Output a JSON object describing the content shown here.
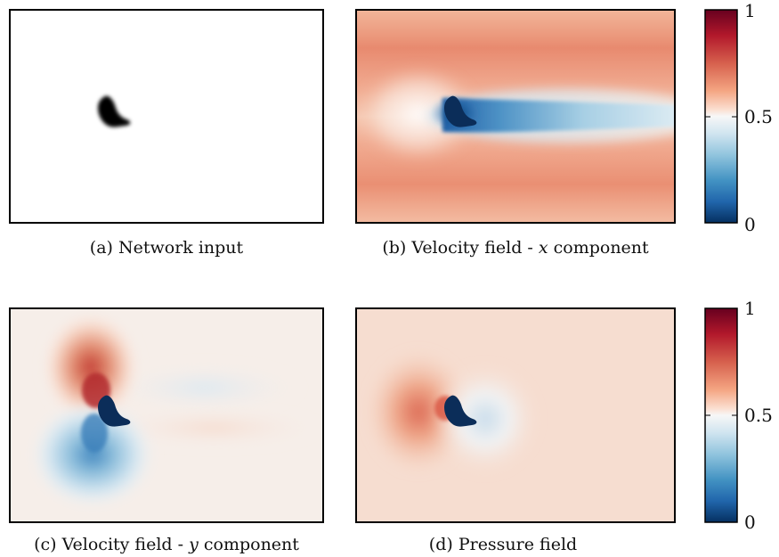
{
  "panels": [
    {
      "id": "a",
      "caption_prefix": "(a) Network input",
      "caption_var": "",
      "caption_suffix": ""
    },
    {
      "id": "b",
      "caption_prefix": "(b) Velocity field - ",
      "caption_var": "x",
      "caption_suffix": " component"
    },
    {
      "id": "c",
      "caption_prefix": "(c) Velocity field - ",
      "caption_var": "y",
      "caption_suffix": " component"
    },
    {
      "id": "d",
      "caption_prefix": "(d) Pressure field",
      "caption_var": "",
      "caption_suffix": ""
    }
  ],
  "colorbar": {
    "ticks": [
      "1",
      "0.5",
      "0"
    ],
    "colormap": "RdBu_r",
    "colors": {
      "high": "#67001f",
      "mid_high": "#f4a582",
      "mid": "#f7f7f7",
      "mid_low": "#92c5de",
      "low": "#053061"
    }
  },
  "obstacle_color_input": "#000000",
  "obstacle_color_field": "#0b2d59"
}
